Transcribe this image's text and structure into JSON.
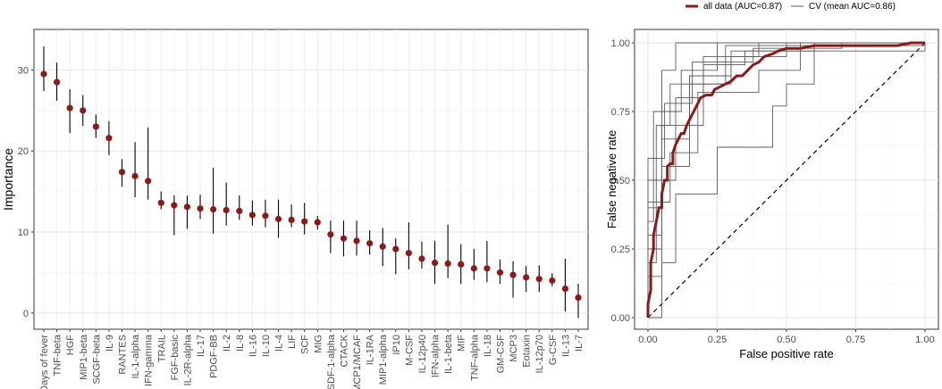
{
  "chart_data": [
    {
      "type": "scatter",
      "ylabel": "Importance",
      "xlabel": "",
      "ylim": [
        -2,
        35
      ],
      "yticks": [
        0,
        10,
        20,
        30
      ],
      "grid": true,
      "point_color": "#8b1a1a",
      "categories": [
        "Days of fever",
        "TNF-beta",
        "HGF",
        "MIP1-beta",
        "SCGF-beta",
        "IL-9",
        "RANTES",
        "IL-1-alpha",
        "IFN-gamma",
        "TRAIL",
        "FGF-basic",
        "IL-2R-alpha",
        "IL-17",
        "PDGF-BB",
        "IL-2",
        "IL-8",
        "IL-16",
        "IL-10",
        "IL-4",
        "LIF",
        "SCF",
        "MIG",
        "SDF-1-alpha",
        "CTACK",
        "MCP1/MCAF",
        "IL-1RA",
        "MIP1-alpha",
        "IP10",
        "M-CSF",
        "IL-12p40",
        "IFN-alpha",
        "IL-1-beta",
        "MIF",
        "TNF-alpha",
        "IL-18",
        "GM-CSF",
        "MCP3",
        "Eotaxin",
        "IL-12p70",
        "G-CSF",
        "IL-13",
        "IL-7"
      ],
      "values": [
        29.5,
        28.5,
        25.3,
        25.0,
        23.0,
        21.6,
        17.4,
        16.9,
        16.3,
        13.6,
        13.3,
        13.1,
        12.9,
        12.8,
        12.7,
        12.6,
        12.1,
        12.0,
        11.6,
        11.5,
        11.3,
        11.2,
        9.7,
        9.2,
        8.9,
        8.6,
        8.2,
        7.9,
        7.4,
        6.7,
        6.2,
        6.1,
        6.0,
        5.5,
        5.5,
        5.0,
        4.7,
        4.4,
        4.2,
        4.0,
        3.0,
        1.9
      ],
      "lower": [
        27.4,
        26.2,
        22.2,
        23.1,
        21.6,
        19.5,
        15.6,
        14.3,
        14.0,
        12.8,
        9.6,
        10.4,
        11.6,
        9.8,
        10.8,
        11.5,
        10.8,
        10.6,
        9.3,
        10.6,
        9.7,
        10.3,
        7.4,
        7.0,
        7.1,
        7.2,
        5.8,
        4.8,
        5.4,
        5.5,
        3.6,
        4.3,
        3.6,
        4.1,
        3.8,
        3.6,
        1.9,
        2.6,
        2.6,
        3.3,
        0.2,
        -0.6
      ],
      "upper": [
        32.9,
        30.9,
        27.6,
        26.9,
        24.5,
        23.7,
        19.0,
        21.1,
        22.9,
        15.0,
        14.5,
        14.5,
        14.6,
        17.9,
        16.1,
        14.5,
        13.9,
        14.0,
        14.0,
        13.4,
        13.6,
        12.0,
        11.4,
        11.4,
        11.4,
        10.2,
        10.5,
        9.2,
        11.2,
        8.8,
        8.9,
        10.9,
        8.5,
        7.9,
        8.9,
        6.6,
        6.4,
        5.8,
        5.9,
        4.9,
        6.7,
        3.6
      ]
    },
    {
      "type": "line",
      "xlabel": "False positive rate",
      "ylabel": "False negative rate",
      "xlim": [
        0,
        1
      ],
      "ylim": [
        0,
        1
      ],
      "xticks": [
        "0.00",
        "0.25",
        "0.50",
        "0.75",
        "1.00"
      ],
      "yticks": [
        "0.00",
        "0.25",
        "0.50",
        "0.75",
        "1.00"
      ],
      "grid": true,
      "legend_position": "top",
      "legend": [
        {
          "label": "all data (AUC=0.87)",
          "color": "#8b1a1a"
        },
        {
          "label": "CV (mean AUC=0.86)",
          "color": "#5a5a5a"
        }
      ],
      "main_curve": [
        [
          0,
          0
        ],
        [
          0,
          0.05
        ],
        [
          0.01,
          0.1
        ],
        [
          0.01,
          0.2
        ],
        [
          0.02,
          0.25
        ],
        [
          0.02,
          0.3
        ],
        [
          0.03,
          0.35
        ],
        [
          0.04,
          0.4
        ],
        [
          0.05,
          0.4
        ],
        [
          0.05,
          0.45
        ],
        [
          0.06,
          0.5
        ],
        [
          0.07,
          0.5
        ],
        [
          0.07,
          0.55
        ],
        [
          0.08,
          0.56
        ],
        [
          0.09,
          0.56
        ],
        [
          0.09,
          0.6
        ],
        [
          0.1,
          0.63
        ],
        [
          0.11,
          0.65
        ],
        [
          0.12,
          0.67
        ],
        [
          0.13,
          0.67
        ],
        [
          0.14,
          0.7
        ],
        [
          0.15,
          0.72
        ],
        [
          0.16,
          0.74
        ],
        [
          0.17,
          0.76
        ],
        [
          0.18,
          0.78
        ],
        [
          0.19,
          0.8
        ],
        [
          0.21,
          0.81
        ],
        [
          0.23,
          0.81
        ],
        [
          0.24,
          0.83
        ],
        [
          0.26,
          0.84
        ],
        [
          0.28,
          0.85
        ],
        [
          0.3,
          0.86
        ],
        [
          0.32,
          0.88
        ],
        [
          0.34,
          0.88
        ],
        [
          0.36,
          0.9
        ],
        [
          0.38,
          0.92
        ],
        [
          0.4,
          0.93
        ],
        [
          0.42,
          0.95
        ],
        [
          0.45,
          0.96
        ],
        [
          0.47,
          0.97
        ],
        [
          0.5,
          0.98
        ],
        [
          0.55,
          0.98
        ],
        [
          0.6,
          0.99
        ],
        [
          0.7,
          0.99
        ],
        [
          0.8,
          0.99
        ],
        [
          0.9,
          0.99
        ],
        [
          0.95,
          1
        ],
        [
          1,
          1
        ]
      ],
      "cv_curves": [
        [
          [
            0,
            0
          ],
          [
            0,
            0.3
          ],
          [
            0.05,
            0.3
          ],
          [
            0.05,
            0.9
          ],
          [
            0.1,
            0.9
          ],
          [
            0.1,
            1
          ],
          [
            1,
            1
          ]
        ],
        [
          [
            0,
            0
          ],
          [
            0,
            0.15
          ],
          [
            0.05,
            0.15
          ],
          [
            0.05,
            0.55
          ],
          [
            0.15,
            0.55
          ],
          [
            0.15,
            0.85
          ],
          [
            0.3,
            0.85
          ],
          [
            0.3,
            0.95
          ],
          [
            0.5,
            0.95
          ],
          [
            0.5,
            1
          ],
          [
            1,
            1
          ]
        ],
        [
          [
            0,
            0
          ],
          [
            0,
            0.4
          ],
          [
            0.05,
            0.4
          ],
          [
            0.05,
            0.7
          ],
          [
            0.2,
            0.7
          ],
          [
            0.2,
            0.92
          ],
          [
            0.35,
            0.92
          ],
          [
            0.35,
            0.97
          ],
          [
            0.6,
            0.97
          ],
          [
            0.6,
            1
          ],
          [
            1,
            1
          ]
        ],
        [
          [
            0,
            0
          ],
          [
            0.05,
            0
          ],
          [
            0.05,
            0.2
          ],
          [
            0.1,
            0.2
          ],
          [
            0.1,
            0.45
          ],
          [
            0.25,
            0.45
          ],
          [
            0.25,
            0.62
          ],
          [
            0.45,
            0.62
          ],
          [
            0.45,
            0.77
          ],
          [
            0.5,
            0.77
          ],
          [
            0.5,
            0.85
          ],
          [
            0.6,
            0.85
          ],
          [
            0.6,
            1
          ],
          [
            1,
            1
          ]
        ],
        [
          [
            0,
            0
          ],
          [
            0,
            0.5
          ],
          [
            0.1,
            0.5
          ],
          [
            0.1,
            0.8
          ],
          [
            0.2,
            0.8
          ],
          [
            0.2,
            0.95
          ],
          [
            0.4,
            0.95
          ],
          [
            0.4,
            1
          ],
          [
            1,
            1
          ]
        ],
        [
          [
            0,
            0
          ],
          [
            0,
            0.25
          ],
          [
            0.05,
            0.25
          ],
          [
            0.05,
            0.65
          ],
          [
            0.15,
            0.65
          ],
          [
            0.15,
            0.88
          ],
          [
            0.3,
            0.88
          ],
          [
            0.3,
            0.97
          ],
          [
            1,
            0.97
          ],
          [
            1,
            1
          ]
        ],
        [
          [
            0,
            0
          ],
          [
            0,
            0.35
          ],
          [
            0.02,
            0.35
          ],
          [
            0.02,
            0.75
          ],
          [
            0.12,
            0.75
          ],
          [
            0.12,
            0.9
          ],
          [
            0.25,
            0.9
          ],
          [
            0.25,
            1
          ],
          [
            1,
            1
          ]
        ],
        [
          [
            0,
            0
          ],
          [
            0,
            0.42
          ],
          [
            0.08,
            0.42
          ],
          [
            0.08,
            0.6
          ],
          [
            0.18,
            0.6
          ],
          [
            0.18,
            0.82
          ],
          [
            0.4,
            0.82
          ],
          [
            0.4,
            0.9
          ],
          [
            0.55,
            0.9
          ],
          [
            0.55,
            1
          ],
          [
            1,
            1
          ]
        ],
        [
          [
            0,
            0
          ],
          [
            0,
            0.2
          ],
          [
            0.03,
            0.2
          ],
          [
            0.03,
            0.7
          ],
          [
            0.08,
            0.7
          ],
          [
            0.08,
            0.85
          ],
          [
            0.28,
            0.85
          ],
          [
            0.28,
            0.99
          ],
          [
            1,
            0.99
          ],
          [
            1,
            1
          ]
        ],
        [
          [
            0,
            0
          ],
          [
            0,
            0.58
          ],
          [
            0.06,
            0.58
          ],
          [
            0.06,
            0.78
          ],
          [
            0.16,
            0.78
          ],
          [
            0.16,
            0.93
          ],
          [
            0.38,
            0.93
          ],
          [
            0.38,
            0.98
          ],
          [
            0.7,
            0.98
          ],
          [
            0.7,
            1
          ],
          [
            1,
            1
          ]
        ]
      ]
    }
  ]
}
